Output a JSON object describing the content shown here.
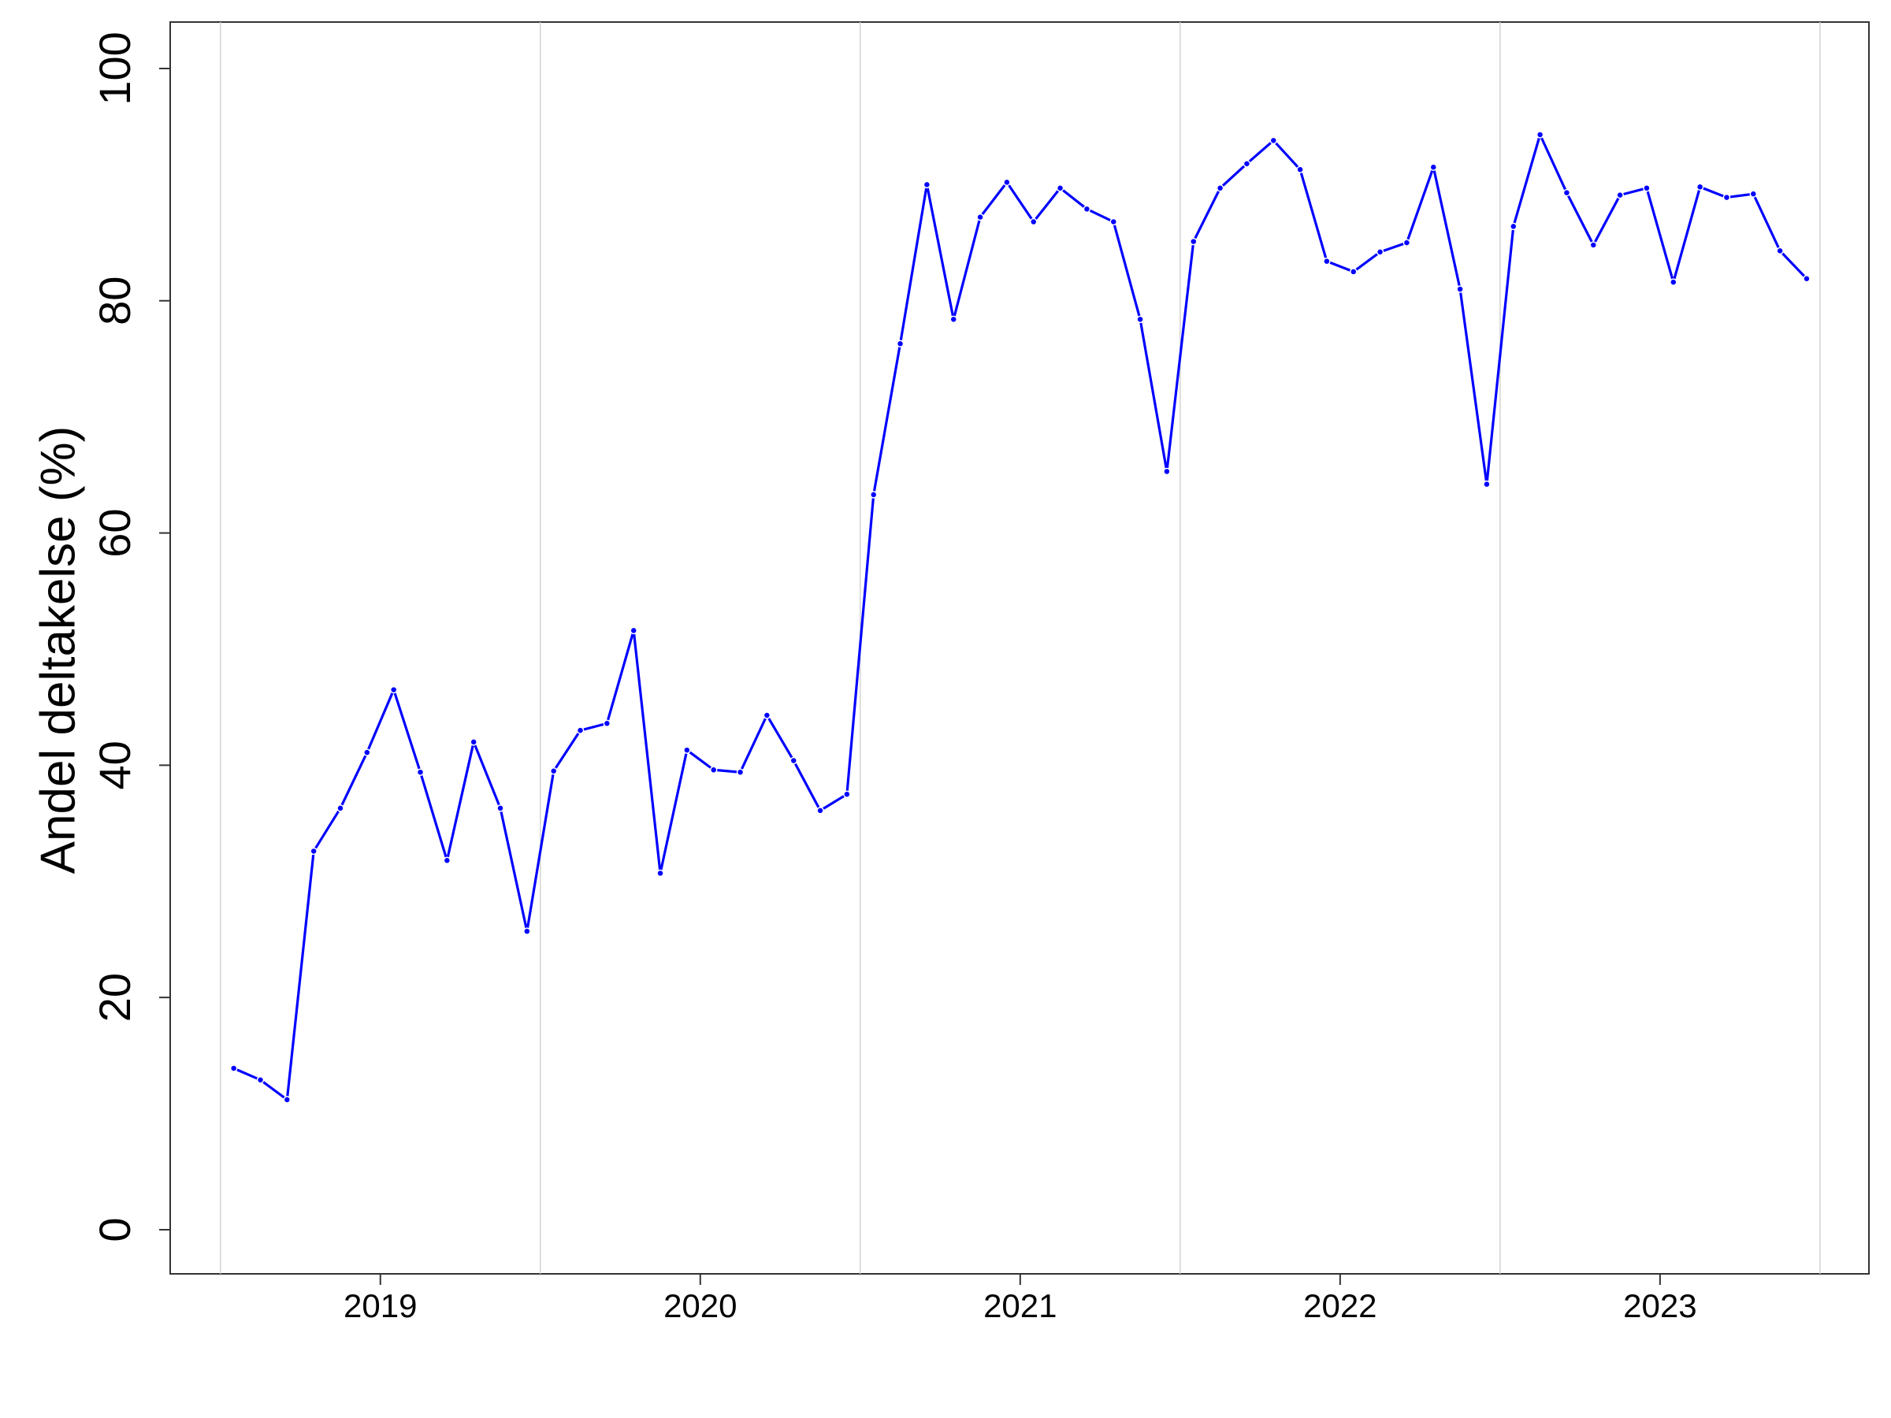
{
  "chart_data": {
    "type": "line",
    "ylabel": "Andel deltakelse (%)",
    "x": [
      2018.5417,
      2018.625,
      2018.7083,
      2018.7917,
      2018.875,
      2018.9583,
      2019.0417,
      2019.125,
      2019.2083,
      2019.2917,
      2019.375,
      2019.4583,
      2019.5417,
      2019.625,
      2019.7083,
      2019.7917,
      2019.875,
      2019.9583,
      2020.0417,
      2020.125,
      2020.2083,
      2020.2917,
      2020.375,
      2020.4583,
      2020.5417,
      2020.625,
      2020.7083,
      2020.7917,
      2020.875,
      2020.9583,
      2021.0417,
      2021.125,
      2021.2083,
      2021.2917,
      2021.375,
      2021.4583,
      2021.5417,
      2021.625,
      2021.7083,
      2021.7917,
      2021.875,
      2021.9583,
      2022.0417,
      2022.125,
      2022.2083,
      2022.2917,
      2022.375,
      2022.4583,
      2022.5417,
      2022.625,
      2022.7083,
      2022.7917,
      2022.875,
      2022.9583,
      2023.0417,
      2023.125,
      2023.2083,
      2023.2917,
      2023.375,
      2023.4583
    ],
    "series": [
      {
        "color": "#0000ff",
        "values": [
          13.9,
          12.9,
          11.2,
          32.6,
          36.3,
          41.1,
          46.5,
          39.4,
          31.8,
          42.0,
          36.3,
          25.7,
          39.5,
          43.0,
          43.6,
          51.6,
          30.7,
          41.3,
          39.6,
          39.4,
          44.3,
          40.4,
          36.1,
          37.5,
          63.3,
          76.3,
          90.0,
          78.4,
          87.2,
          90.2,
          86.8,
          89.7,
          87.9,
          86.8,
          78.4,
          65.3,
          85.1,
          89.7,
          91.8,
          93.8,
          91.3,
          83.4,
          82.5,
          84.2,
          85.0,
          91.5,
          81.0,
          64.2,
          86.4,
          94.3,
          89.3,
          84.8,
          89.1,
          89.7,
          81.6,
          89.8,
          88.9,
          89.2,
          84.3,
          81.9
        ]
      }
    ],
    "xlim": [
      2018.343,
      2023.653
    ],
    "xticks": [
      2019,
      2020,
      2021,
      2022,
      2023
    ],
    "ylim": [
      -3.8,
      104.0
    ],
    "yticks": [
      0,
      20,
      40,
      60,
      80,
      100
    ],
    "vlines": [
      2018.5,
      2019.5,
      2020.5,
      2021.5,
      2022.5,
      2023.5
    ]
  }
}
